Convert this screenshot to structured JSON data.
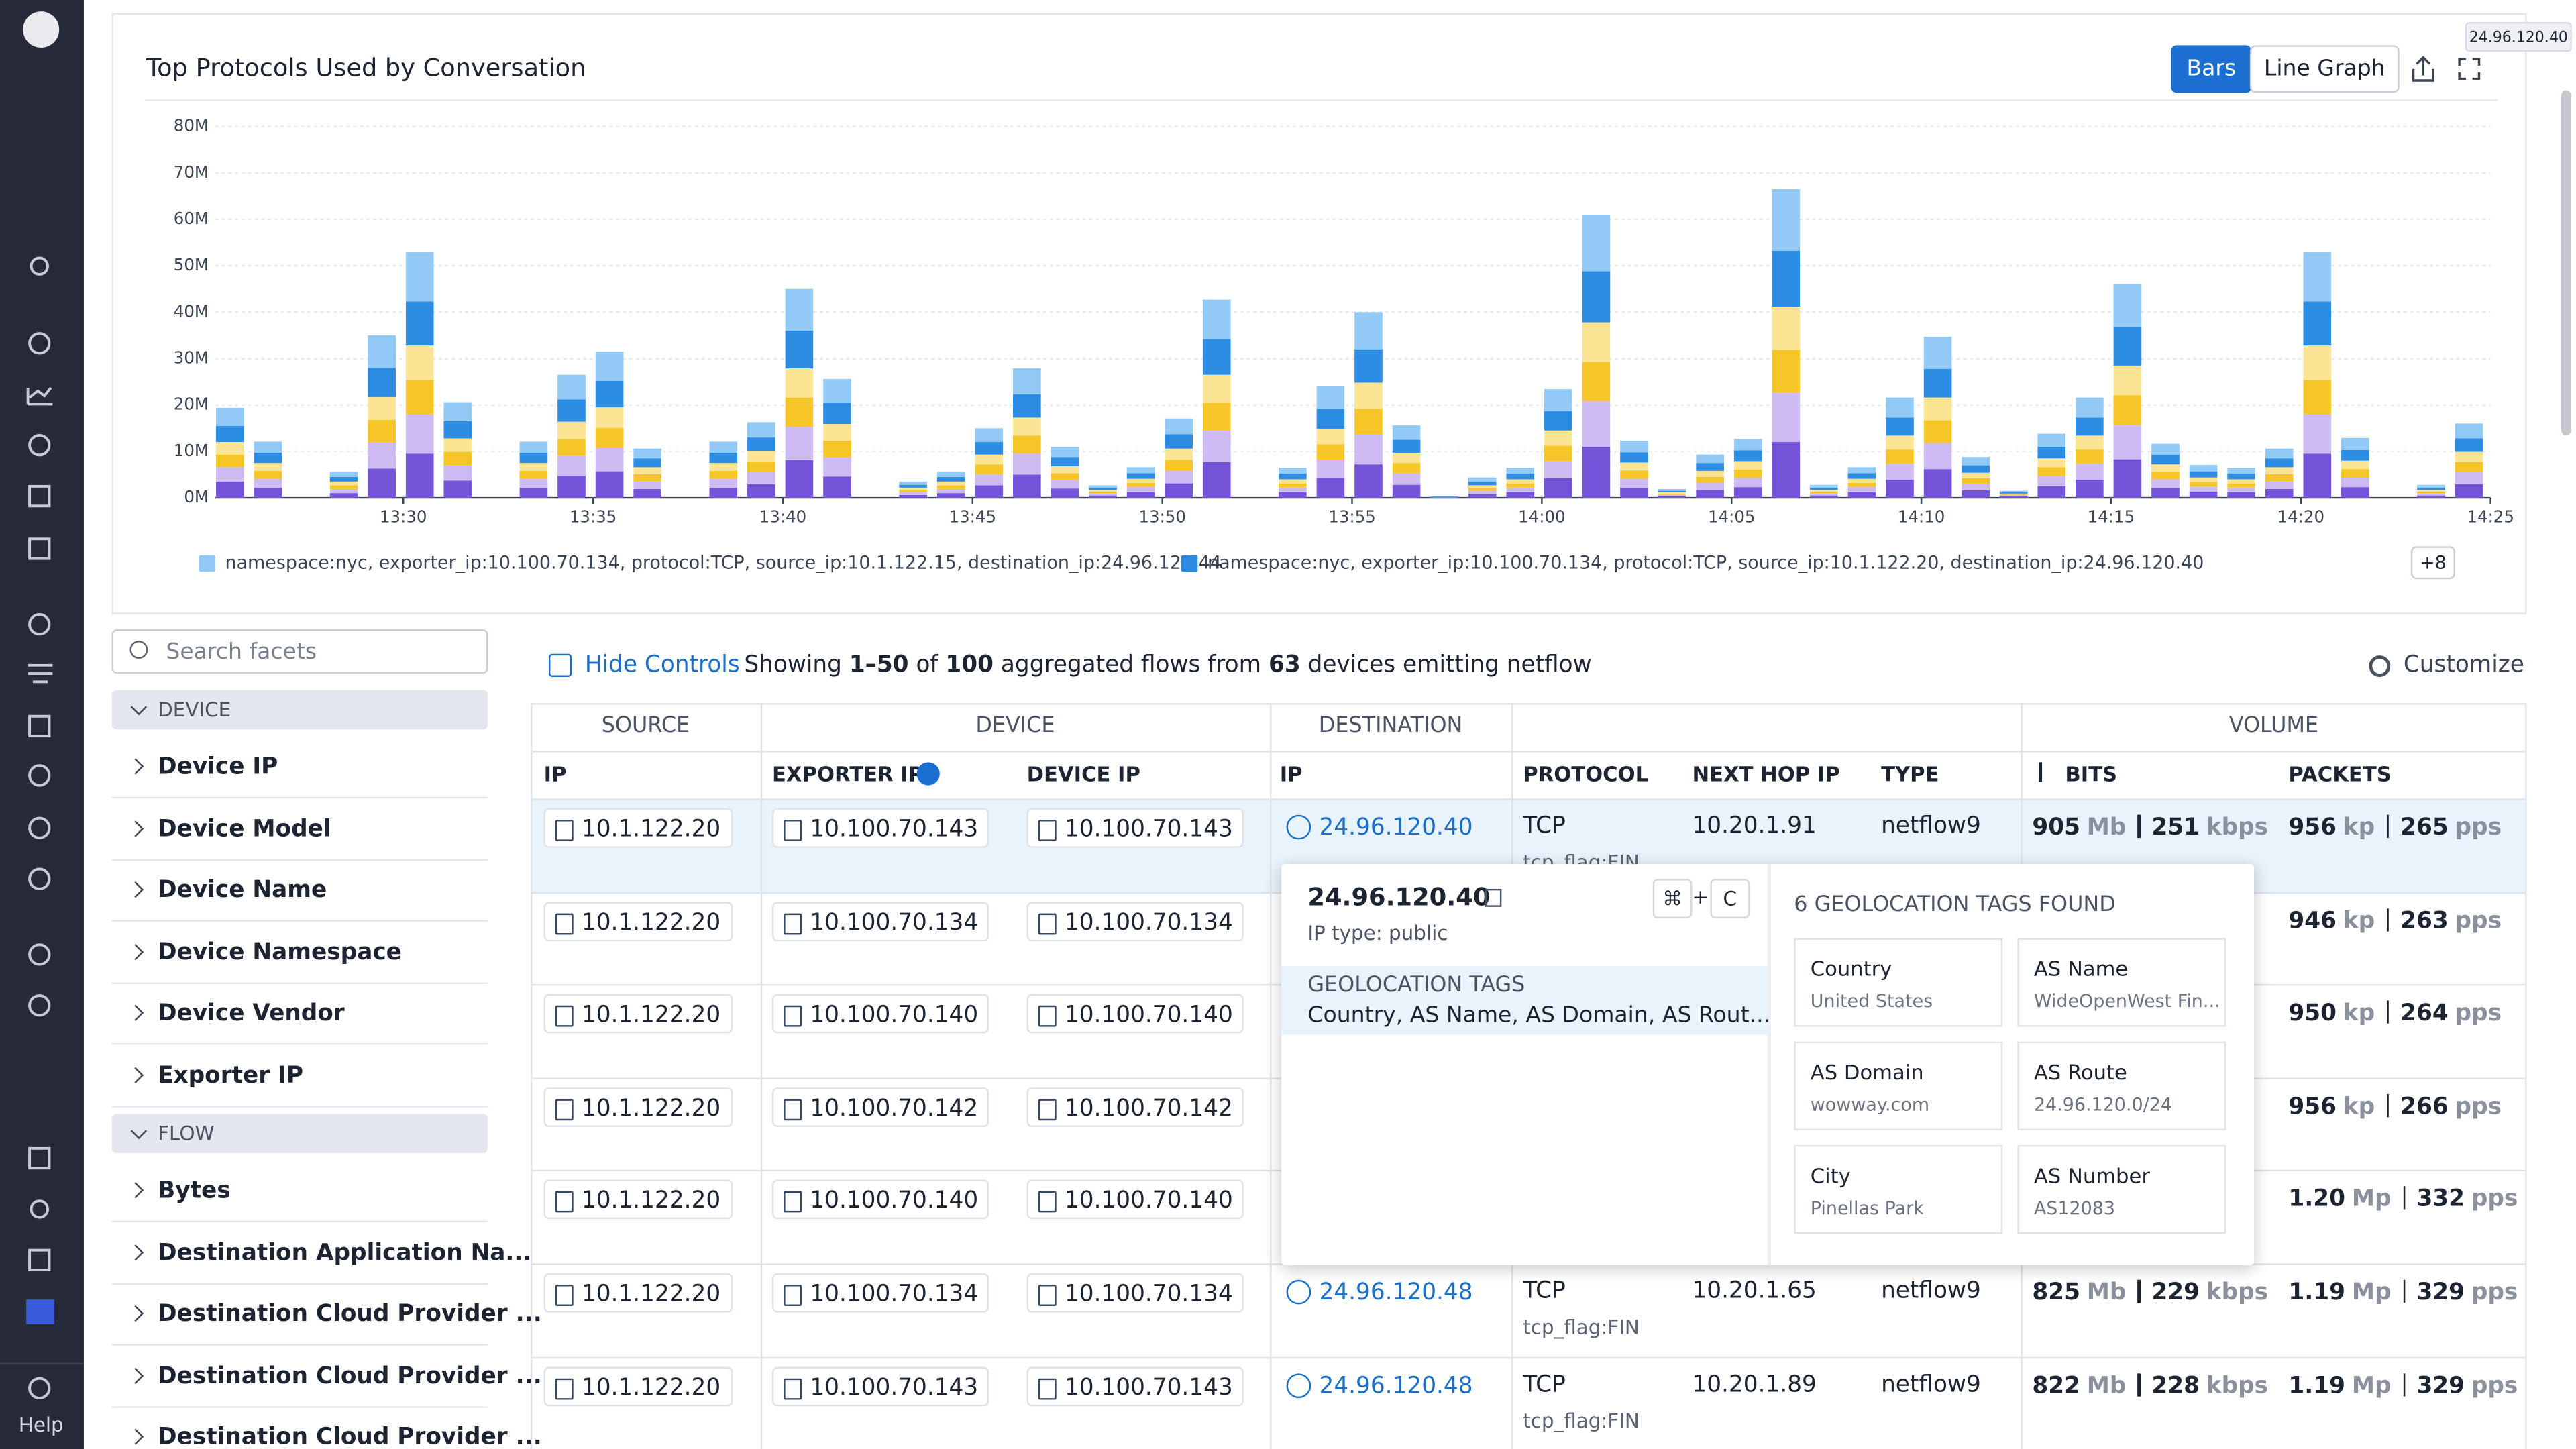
{
  "hover_tooltip": "24.96.120.40",
  "sidebar": {
    "help": "Help"
  },
  "chart_data": {
    "type": "bar",
    "stacked": true,
    "title": "Top Protocols Used by Conversation",
    "view_options": [
      "Bars",
      "Line Graph"
    ],
    "x": [
      "13:25",
      "13:26",
      "13:28",
      "13:29",
      "13:30",
      "13:31",
      "13:33",
      "13:34",
      "13:35",
      "13:36",
      "13:38",
      "13:39",
      "13:40",
      "13:41",
      "13:43",
      "13:44",
      "13:45",
      "13:46",
      "13:47",
      "13:48",
      "13:49",
      "13:50",
      "13:51",
      "13:53",
      "13:54",
      "13:55",
      "13:56",
      "13:57",
      "13:58",
      "13:59",
      "14:00",
      "14:01",
      "14:02",
      "14:03",
      "14:04",
      "14:05",
      "14:06",
      "14:07",
      "14:08",
      "14:09",
      "14:10",
      "14:11",
      "14:12",
      "14:13",
      "14:14",
      "14:15",
      "14:16",
      "14:17",
      "14:18",
      "14:19",
      "14:20",
      "14:21",
      "14:23",
      "14:24"
    ],
    "xlim": [
      "13:25",
      "14:25"
    ],
    "xticks": [
      "13:30",
      "13:35",
      "13:40",
      "13:45",
      "13:50",
      "13:55",
      "14:00",
      "14:05",
      "14:10",
      "14:15",
      "14:20",
      "14:25"
    ],
    "ylim": [
      0,
      80
    ],
    "yticks": [
      {
        "value": 0,
        "label": "0M"
      },
      {
        "value": 10,
        "label": "10M"
      },
      {
        "value": 20,
        "label": "20M"
      },
      {
        "value": 30,
        "label": "30M"
      },
      {
        "value": 40,
        "label": "40M"
      },
      {
        "value": 50,
        "label": "50M"
      },
      {
        "value": 60,
        "label": "60M"
      },
      {
        "value": 70,
        "label": "70M"
      },
      {
        "value": 80,
        "label": "80M"
      }
    ],
    "grid": true,
    "series": [
      {
        "name": "namespace:nyc, exporter_ip:10.100.70.134, protocol:TCP, source_ip:10.1.122.15, destination_ip:24.96.120.44",
        "color": "#92c9f5",
        "values": [
          3.9,
          2.4,
          1.1,
          7,
          10.6,
          4.1,
          2.4,
          5.3,
          6.3,
          2.1,
          2.4,
          3.3,
          9,
          5.1,
          0.7,
          1.1,
          3,
          5.6,
          2.2,
          0.5,
          1.3,
          3.4,
          8.5,
          1.3,
          4.8,
          8,
          3.1,
          0.1,
          0.9,
          1.3,
          4.7,
          12.2,
          2.5,
          0.4,
          1.8,
          2.5,
          13.3,
          0.6,
          1.3,
          4.3,
          6.9,
          1.8,
          0.3,
          2.8,
          4.3,
          9.2,
          2.3,
          1.4,
          1.3,
          2.1,
          10.6,
          2.6,
          0.6,
          3.2
        ]
      },
      {
        "name": "namespace:nyc, exporter_ip:10.100.70.134, protocol:TCP, source_ip:10.1.122.20, destination_ip:24.96.120.40",
        "color": "#2c8de2",
        "values": [
          3.5,
          2.2,
          1,
          6.3,
          9.5,
          3.7,
          2.2,
          4.8,
          5.7,
          1.9,
          2.2,
          2.9,
          8.1,
          4.6,
          0.6,
          1,
          2.7,
          5,
          2,
          0.5,
          1.2,
          3.1,
          7.7,
          1.2,
          4.3,
          7.2,
          2.8,
          0.1,
          0.8,
          1.2,
          4.2,
          11,
          2.2,
          0.3,
          1.7,
          2.3,
          12,
          0.5,
          1.2,
          3.9,
          6.2,
          1.6,
          0.3,
          2.5,
          3.9,
          8.3,
          2.1,
          1.3,
          1.2,
          1.9,
          9.5,
          2.3,
          0.5,
          2.9
        ]
      },
      {
        "color": "#fbe493",
        "values": [
          2.7,
          1.7,
          0.8,
          4.9,
          7.4,
          2.9,
          1.7,
          3.7,
          4.4,
          1.5,
          1.7,
          2.3,
          6.3,
          3.6,
          0.5,
          0.8,
          2.1,
          3.9,
          1.5,
          0.4,
          0.9,
          2.4,
          6,
          0.9,
          3.4,
          5.6,
          2.2,
          0,
          0.6,
          0.9,
          3.3,
          8.5,
          1.7,
          0.3,
          1.3,
          1.8,
          9.3,
          0.4,
          0.9,
          3,
          4.9,
          1.2,
          0.2,
          1.9,
          3,
          6.4,
          1.6,
          1,
          0.9,
          1.5,
          7.4,
          1.8,
          0.4,
          2.2
        ]
      },
      {
        "color": "#f6c628",
        "values": [
          2.7,
          1.7,
          0.8,
          4.9,
          7.4,
          2.9,
          1.7,
          3.7,
          4.4,
          1.5,
          1.7,
          2.3,
          6.3,
          3.6,
          0.5,
          0.8,
          2.1,
          3.9,
          1.5,
          0.4,
          0.9,
          2.4,
          6,
          0.9,
          3.4,
          5.6,
          2.2,
          0,
          0.6,
          0.9,
          3.3,
          8.5,
          1.7,
          0.3,
          1.3,
          1.8,
          9.3,
          0.4,
          0.9,
          3,
          4.9,
          1.2,
          0.2,
          1.9,
          3,
          6.4,
          1.6,
          1,
          0.9,
          1.5,
          7.4,
          1.8,
          0.4,
          2.2
        ]
      },
      {
        "color": "#cdbbf3",
        "values": [
          3.1,
          1.9,
          0.9,
          5.6,
          8.5,
          3.3,
          1.9,
          4.2,
          5,
          1.7,
          1.9,
          2.6,
          7.2,
          4.1,
          0.6,
          0.9,
          2.4,
          4.5,
          1.8,
          0.4,
          1.1,
          2.7,
          6.8,
          1,
          3.8,
          6.4,
          2.5,
          0.1,
          0.7,
          1,
          3.7,
          9.8,
          2,
          0.3,
          1.5,
          2,
          10.6,
          0.4,
          1.1,
          3.5,
          5.6,
          1.4,
          0.2,
          2.2,
          3.5,
          7.4,
          1.9,
          1.1,
          1,
          1.7,
          8.5,
          2.1,
          0.4,
          2.6
        ]
      },
      {
        "color": "#7553d8",
        "values": [
          3.5,
          2.2,
          1,
          6.3,
          9.5,
          3.7,
          2.2,
          4.8,
          5.7,
          1.9,
          2.2,
          2.9,
          8.1,
          4.6,
          0.6,
          1,
          2.7,
          5,
          2,
          0.5,
          1.2,
          3.1,
          7.7,
          1.2,
          4.3,
          7.2,
          2.8,
          0.1,
          0.8,
          1.2,
          4.2,
          11,
          2.2,
          0.3,
          1.7,
          2.3,
          12,
          0.5,
          1.2,
          3.9,
          6.2,
          1.6,
          0.3,
          2.5,
          3.9,
          8.3,
          2.1,
          1.3,
          1.2,
          1.9,
          9.5,
          2.3,
          0.5,
          2.9
        ]
      }
    ],
    "legend_more": "+8"
  },
  "facets": {
    "search_placeholder": "Search facets",
    "sections": [
      {
        "title": "DEVICE",
        "items": [
          "Device IP",
          "Device Model",
          "Device Name",
          "Device Namespace",
          "Device Vendor",
          "Exporter IP"
        ]
      },
      {
        "title": "FLOW",
        "items": [
          "Bytes",
          "Destination Application Na...",
          "Destination Cloud Provider ...",
          "Destination Cloud Provider ...",
          "Destination Cloud Provider ..."
        ]
      }
    ]
  },
  "toolbar": {
    "hide_controls": "Hide Controls",
    "summary": [
      "Showing ",
      "1–50",
      " of ",
      "100",
      " aggregated flows from ",
      "63",
      " devices emitting netflow"
    ],
    "customize": "Customize"
  },
  "table": {
    "group_headers": [
      "SOURCE",
      "DEVICE",
      "DESTINATION",
      "VOLUME"
    ],
    "columns": [
      "IP",
      "EXPORTER IP",
      "DEVICE IP",
      "IP",
      "PROTOCOL",
      "NEXT HOP IP",
      "TYPE",
      "BITS",
      "PACKETS"
    ],
    "rows": [
      {
        "source": "10.1.122.20",
        "exporter": "10.100.70.143",
        "device": "10.100.70.143",
        "destination": "24.96.120.40",
        "protocol": "TCP",
        "flag": "tcp_flag:FIN",
        "next_hop": "10.20.1.91",
        "type": "netflow9",
        "bits": [
          "905",
          "Mb",
          "251",
          "kbps"
        ],
        "packets": [
          "956",
          "kp",
          "265",
          "pps"
        ]
      },
      {
        "source": "10.1.122.20",
        "exporter": "10.100.70.134",
        "device": "10.100.70.134",
        "packets": [
          "946",
          "kp",
          "263",
          "pps"
        ]
      },
      {
        "source": "10.1.122.20",
        "exporter": "10.100.70.140",
        "device": "10.100.70.140",
        "packets": [
          "950",
          "kp",
          "264",
          "pps"
        ]
      },
      {
        "source": "10.1.122.20",
        "exporter": "10.100.70.142",
        "device": "10.100.70.142",
        "packets": [
          "956",
          "kp",
          "266",
          "pps"
        ]
      },
      {
        "source": "10.1.122.20",
        "exporter": "10.100.70.140",
        "device": "10.100.70.140",
        "packets": [
          "1.20",
          "Mp",
          "332",
          "pps"
        ]
      },
      {
        "source": "10.1.122.20",
        "exporter": "10.100.70.134",
        "device": "10.100.70.134",
        "destination": "24.96.120.48",
        "protocol": "TCP",
        "flag": "tcp_flag:FIN",
        "next_hop": "10.20.1.65",
        "type": "netflow9",
        "bits": [
          "825",
          "Mb",
          "229",
          "kbps"
        ],
        "packets": [
          "1.19",
          "Mp",
          "329",
          "pps"
        ]
      },
      {
        "source": "10.1.122.20",
        "exporter": "10.100.70.143",
        "device": "10.100.70.143",
        "destination": "24.96.120.48",
        "protocol": "TCP",
        "flag": "tcp_flag:FIN",
        "next_hop": "10.20.1.89",
        "type": "netflow9",
        "bits": [
          "822",
          "Mb",
          "228",
          "kbps"
        ],
        "packets": [
          "1.19",
          "Mp",
          "329",
          "pps"
        ]
      }
    ]
  },
  "popover": {
    "ip": "24.96.120.40",
    "shortcut": [
      "⌘",
      "+",
      "C"
    ],
    "ip_type": "IP type: public",
    "section_title": "GEOLOCATION TAGS",
    "section_text": "Country, AS Name, AS Domain, AS Rout...",
    "tags_title": "6 GEOLOCATION TAGS FOUND",
    "tags": [
      {
        "label": "Country",
        "value": "United States"
      },
      {
        "label": "AS Name",
        "value": "WideOpenWest Fin..."
      },
      {
        "label": "AS Domain",
        "value": "wowway.com"
      },
      {
        "label": "AS Route",
        "value": "24.96.120.0/24"
      },
      {
        "label": "City",
        "value": "Pinellas Park"
      },
      {
        "label": "AS Number",
        "value": "AS12083"
      }
    ]
  }
}
